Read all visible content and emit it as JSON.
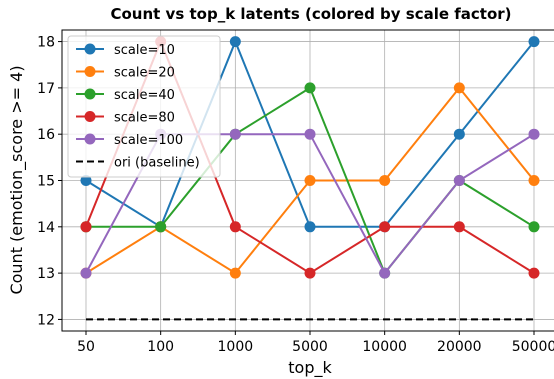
{
  "chart_data": {
    "type": "line",
    "title": "Count vs top_k latents (colored by scale factor)",
    "xlabel": "top_k",
    "ylabel": "Count (emotion_score >= 4)",
    "categories": [
      "50",
      "100",
      "1000",
      "5000",
      "10000",
      "20000",
      "50000"
    ],
    "yticks": [
      12,
      13,
      14,
      15,
      16,
      17,
      18
    ],
    "ylim": [
      11.75,
      18.25
    ],
    "grid": true,
    "legend_position": "top-left",
    "series": [
      {
        "name": "scale=10",
        "color": "#1f77b4",
        "values": [
          15,
          14,
          18,
          14,
          14,
          16,
          18
        ]
      },
      {
        "name": "scale=20",
        "color": "#ff7f0e",
        "values": [
          13,
          14,
          13,
          15,
          15,
          17,
          15
        ]
      },
      {
        "name": "scale=40",
        "color": "#2ca02c",
        "values": [
          14,
          14,
          16,
          17,
          13,
          15,
          14
        ]
      },
      {
        "name": "scale=80",
        "color": "#d62728",
        "values": [
          14,
          18,
          14,
          13,
          14,
          14,
          13
        ]
      },
      {
        "name": "scale=100",
        "color": "#9467bd",
        "values": [
          13,
          16,
          16,
          16,
          13,
          15,
          16
        ]
      }
    ],
    "baseline": {
      "name": "ori (baseline)",
      "color": "#000000",
      "style": "dashed",
      "value": 12
    }
  }
}
